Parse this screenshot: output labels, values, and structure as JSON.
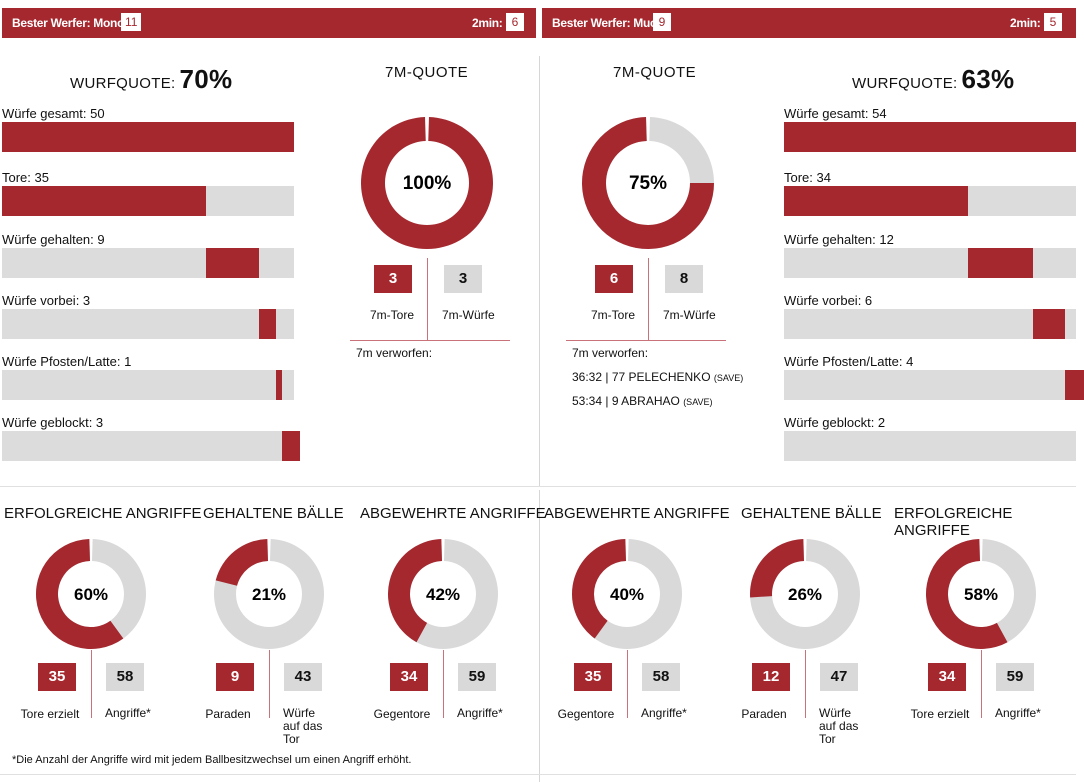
{
  "colors": {
    "accent": "#a5282f",
    "grey": "#d9d9d9"
  },
  "left": {
    "best_label": "Bester Werfer: Monch",
    "best_value": "11",
    "twomin_label": "2min:",
    "twomin_value": "6",
    "wurfquote_label": "WURFQUOTE:",
    "wurfquote_value": "70%",
    "bars": [
      {
        "label": "Würfe gesamt: 50",
        "value": 50
      },
      {
        "label": "Tore: 35",
        "value": 35
      },
      {
        "label": "Würfe gehalten: 9",
        "value": 9
      },
      {
        "label": "Würfe vorbei: 3",
        "value": 3
      },
      {
        "label": "Würfe Pfosten/Latte: 1",
        "value": 1
      },
      {
        "label": "Würfe geblockt: 3",
        "value": 3
      }
    ],
    "seven_title": "7M-QUOTE",
    "seven_pct": "100%",
    "seven_tore": "3",
    "seven_wuerfe": "3",
    "seven_tore_label": "7m-Tore",
    "seven_wuerfe_label": "7m-Würfe",
    "verworfen_label": "7m verworfen:",
    "verworfen": []
  },
  "right": {
    "best_label": "Bester Werfer: Muck",
    "best_value": "9",
    "twomin_label": "2min:",
    "twomin_value": "5",
    "wurfquote_label": "WURFQUOTE:",
    "wurfquote_value": "63%",
    "bars": [
      {
        "label": "Würfe gesamt: 54",
        "value": 54
      },
      {
        "label": "Tore: 34",
        "value": 34
      },
      {
        "label": "Würfe gehalten: 12",
        "value": 12
      },
      {
        "label": "Würfe vorbei: 6",
        "value": 6
      },
      {
        "label": "Würfe Pfosten/Latte: 4",
        "value": 4
      },
      {
        "label": "Würfe geblockt: 2",
        "value": 2
      }
    ],
    "seven_title": "7M-QUOTE",
    "seven_pct": "75%",
    "seven_tore": "6",
    "seven_wuerfe": "8",
    "seven_tore_label": "7m-Tore",
    "seven_wuerfe_label": "7m-Würfe",
    "verworfen_label": "7m verworfen:",
    "verworfen": [
      {
        "main": "36:32 | 77 PELECHENKO",
        "tag": "(SAVE)"
      },
      {
        "main": "53:34 | 9 ABRAHAO",
        "tag": "(SAVE)"
      }
    ]
  },
  "donuts": [
    {
      "title": "ERFOLGREICHE ANGRIFFE",
      "pct": "60%",
      "red": "35",
      "grey": "58",
      "red_label": "Tore erzielt",
      "grey_label": "Angriffe*"
    },
    {
      "title": "GEHALTENE BÄLLE",
      "pct": "21%",
      "red": "9",
      "grey": "43",
      "red_label": "Paraden",
      "grey_label": "Würfe auf das Tor"
    },
    {
      "title": "ABGEWEHRTE ANGRIFFE",
      "pct": "42%",
      "red": "34",
      "grey": "59",
      "red_label": "Gegentore",
      "grey_label": "Angriffe*"
    },
    {
      "title": "ABGEWEHRTE ANGRIFFE",
      "pct": "40%",
      "red": "35",
      "grey": "58",
      "red_label": "Gegentore",
      "grey_label": "Angriffe*"
    },
    {
      "title": "GEHALTENE BÄLLE",
      "pct": "26%",
      "red": "12",
      "grey": "47",
      "red_label": "Paraden",
      "grey_label": "Würfe auf das Tor"
    },
    {
      "title": "ERFOLGREICHE ANGRIFFE",
      "pct": "58%",
      "red": "34",
      "grey": "59",
      "red_label": "Tore erzielt",
      "grey_label": "Angriffe*"
    }
  ],
  "footnote": "*Die Anzahl der Angriffe wird mit jedem Ballbesitzwechsel um einen Angriff erhöht.",
  "chart_data": [
    {
      "type": "bar",
      "title": "",
      "categories": [
        "Würfe gesamt",
        "Tore",
        "Würfe gehalten",
        "Würfe vorbei",
        "Würfe Pfosten/Latte",
        "Würfe geblockt"
      ],
      "values": [
        50,
        35,
        9,
        3,
        1,
        3
      ]
    },
    {
      "type": "bar",
      "title": "",
      "categories": [
        "Würfe gesamt",
        "Tore",
        "Würfe gehalten",
        "Würfe vorbei",
        "Würfe Pfosten/Latte",
        "Würfe geblockt"
      ],
      "values": [
        54,
        34,
        12,
        6,
        4,
        2
      ]
    },
    {
      "type": "pie",
      "title": "7M-QUOTE",
      "values": [
        3,
        3
      ],
      "categories": [
        "7m-Tore",
        "7m-Würfe"
      ],
      "pct": 100
    },
    {
      "type": "pie",
      "title": "7M-QUOTE",
      "values": [
        6,
        8
      ],
      "categories": [
        "7m-Tore",
        "7m-Würfe"
      ],
      "pct": 75
    },
    {
      "type": "pie",
      "title": "ERFOLGREICHE ANGRIFFE",
      "values": [
        35,
        58
      ],
      "pct": 60
    },
    {
      "type": "pie",
      "title": "GEHALTENE BÄLLE",
      "values": [
        9,
        43
      ],
      "pct": 21
    },
    {
      "type": "pie",
      "title": "ABGEWEHRTE ANGRIFFE",
      "values": [
        34,
        59
      ],
      "pct": 42
    },
    {
      "type": "pie",
      "title": "ABGEWEHRTE ANGRIFFE",
      "values": [
        35,
        58
      ],
      "pct": 40
    },
    {
      "type": "pie",
      "title": "GEHALTENE BÄLLE",
      "values": [
        12,
        47
      ],
      "pct": 26
    },
    {
      "type": "pie",
      "title": "ERFOLGREICHE ANGRIFFE",
      "values": [
        34,
        59
      ],
      "pct": 58
    }
  ]
}
